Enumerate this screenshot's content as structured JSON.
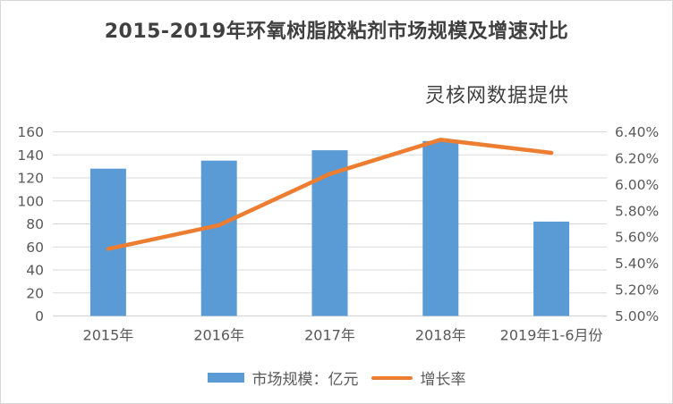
{
  "title": "2015-2019年环氧树脂胶粘剂市场规模及增速对比",
  "source_note": "灵核网数据提供",
  "colors": {
    "bar": "#5b9bd5",
    "line": "#ed7d31",
    "gridline": "#d9d9d9",
    "axis_label": "#595959",
    "title_text": "#404040"
  },
  "legend": {
    "market_label": "市场规模：亿元",
    "growth_label": "增长率"
  },
  "chart_data": {
    "type": "bar",
    "subtype": "bar+line dual axis",
    "title": "2015-2019年环氧树脂胶粘剂市场规模及增速对比",
    "annotation": "灵核网数据提供",
    "categories": [
      "2015年",
      "2016年",
      "2017年",
      "2018年",
      "2019年1-6月份"
    ],
    "series": [
      {
        "name": "市场规模：亿元",
        "type": "bar",
        "axis": "left",
        "color": "#5b9bd5",
        "values": [
          128,
          135,
          144,
          152,
          82
        ]
      },
      {
        "name": "增长率",
        "type": "line",
        "axis": "right",
        "color": "#ed7d31",
        "values": [
          5.51,
          5.69,
          6.08,
          6.34,
          6.24
        ]
      }
    ],
    "left_axis": {
      "min": 0,
      "max": 160,
      "step": 20,
      "labels": [
        "0",
        "20",
        "40",
        "60",
        "80",
        "100",
        "120",
        "140",
        "160"
      ]
    },
    "right_axis": {
      "min": 5.0,
      "max": 6.4,
      "step": 0.2,
      "labels": [
        "5.00%",
        "5.20%",
        "5.40%",
        "5.60%",
        "5.80%",
        "6.00%",
        "6.20%",
        "6.40%"
      ]
    },
    "grid": true,
    "legend_position": "bottom"
  }
}
